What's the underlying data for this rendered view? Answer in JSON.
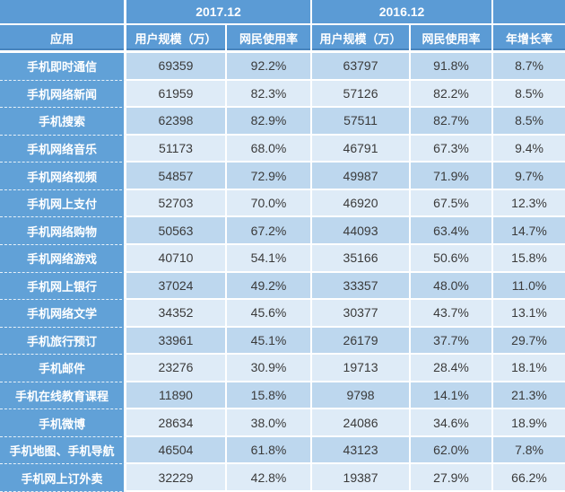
{
  "header": {
    "corner_left": "",
    "corner_right": "",
    "group_2017": "2017.12",
    "group_2016": "2016.12",
    "col_app": "应用",
    "col_users": "用户规模（万）",
    "col_rate": "网民使用率",
    "col_growth": "年增长率"
  },
  "colors": {
    "header_blue": "#5B9BD5",
    "label_blue": "#61A1D7",
    "row_dark": "#BDD7EE",
    "row_light": "#DEEBF7",
    "value_text": "#3A3A3A"
  },
  "chart_data": {
    "type": "table",
    "title": "",
    "column_groups": [
      {
        "label": "2017.12",
        "columns": [
          "用户规模（万）",
          "网民使用率"
        ]
      },
      {
        "label": "2016.12",
        "columns": [
          "用户规模（万）",
          "网民使用率"
        ]
      }
    ],
    "columns": [
      "应用",
      "用户规模（万）",
      "网民使用率",
      "用户规模（万）",
      "网民使用率",
      "年增长率"
    ],
    "rows": [
      [
        "手机即时通信",
        "69359",
        "92.2%",
        "63797",
        "91.8%",
        "8.7%"
      ],
      [
        "手机网络新闻",
        "61959",
        "82.3%",
        "57126",
        "82.2%",
        "8.5%"
      ],
      [
        "手机搜索",
        "62398",
        "82.9%",
        "57511",
        "82.7%",
        "8.5%"
      ],
      [
        "手机网络音乐",
        "51173",
        "68.0%",
        "46791",
        "67.3%",
        "9.4%"
      ],
      [
        "手机网络视频",
        "54857",
        "72.9%",
        "49987",
        "71.9%",
        "9.7%"
      ],
      [
        "手机网上支付",
        "52703",
        "70.0%",
        "46920",
        "67.5%",
        "12.3%"
      ],
      [
        "手机网络购物",
        "50563",
        "67.2%",
        "44093",
        "63.4%",
        "14.7%"
      ],
      [
        "手机网络游戏",
        "40710",
        "54.1%",
        "35166",
        "50.6%",
        "15.8%"
      ],
      [
        "手机网上银行",
        "37024",
        "49.2%",
        "33357",
        "48.0%",
        "11.0%"
      ],
      [
        "手机网络文学",
        "34352",
        "45.6%",
        "30377",
        "43.7%",
        "13.1%"
      ],
      [
        "手机旅行预订",
        "33961",
        "45.1%",
        "26179",
        "37.7%",
        "29.7%"
      ],
      [
        "手机邮件",
        "23276",
        "30.9%",
        "19713",
        "28.4%",
        "18.1%"
      ],
      [
        "手机在线教育课程",
        "11890",
        "15.8%",
        "9798",
        "14.1%",
        "21.3%"
      ],
      [
        "手机微博",
        "28634",
        "38.0%",
        "24086",
        "34.6%",
        "18.9%"
      ],
      [
        "手机地图、手机导航",
        "46504",
        "61.8%",
        "43123",
        "62.0%",
        "7.8%"
      ],
      [
        "手机网上订外卖",
        "32229",
        "42.8%",
        "19387",
        "27.9%",
        "66.2%"
      ]
    ]
  }
}
